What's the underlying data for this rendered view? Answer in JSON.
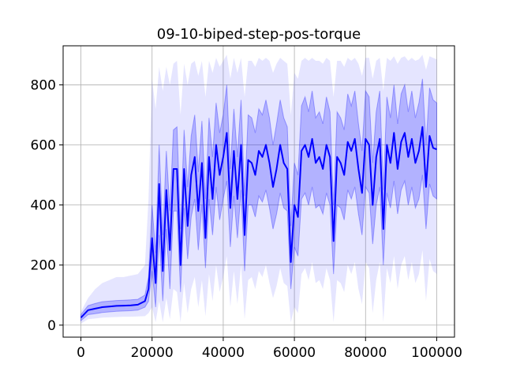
{
  "chart_data": {
    "type": "line",
    "title": "09-10-biped-step-pos-torque",
    "xlabel": "",
    "ylabel": "",
    "xlim": [
      -5000,
      105000
    ],
    "ylim": [
      -40,
      930
    ],
    "xticks": [
      0,
      20000,
      40000,
      60000,
      80000,
      100000
    ],
    "xtick_labels": [
      "0",
      "20000",
      "40000",
      "60000",
      "80000",
      "100000"
    ],
    "yticks": [
      0,
      200,
      400,
      600,
      800
    ],
    "ytick_labels": [
      "0",
      "200",
      "400",
      "600",
      "800"
    ],
    "grid": true,
    "colors": {
      "mean_line": "#0000ff",
      "inner_band": "#0000ff",
      "outer_band": "#0000ff"
    },
    "series": [
      {
        "x": [
          0,
          2000,
          4000,
          6000,
          8000,
          10000,
          12000,
          14000,
          16000,
          18000,
          19000,
          20000,
          21000,
          22000,
          23000,
          24000,
          25000,
          26000,
          27000,
          28000,
          29000,
          30000,
          31000,
          32000,
          33000,
          34000,
          35000,
          36000,
          37000,
          38000,
          39000,
          40000,
          41000,
          42000,
          43000,
          44000,
          45000,
          46000,
          47000,
          48000,
          49000,
          50000,
          51000,
          52000,
          53000,
          54000,
          55000,
          56000,
          57000,
          58000,
          59000,
          60000,
          61000,
          62000,
          63000,
          64000,
          65000,
          66000,
          67000,
          68000,
          69000,
          70000,
          71000,
          72000,
          73000,
          74000,
          75000,
          76000,
          77000,
          78000,
          79000,
          80000,
          81000,
          82000,
          83000,
          84000,
          85000,
          86000,
          87000,
          88000,
          89000,
          90000,
          91000,
          92000,
          93000,
          94000,
          95000,
          96000,
          97000,
          98000,
          99000,
          100000
        ],
        "mean": [
          25,
          50,
          55,
          60,
          62,
          64,
          65,
          66,
          68,
          80,
          120,
          290,
          140,
          470,
          180,
          450,
          250,
          520,
          520,
          200,
          520,
          330,
          500,
          560,
          380,
          540,
          290,
          560,
          420,
          600,
          500,
          560,
          640,
          390,
          580,
          420,
          600,
          300,
          550,
          540,
          500,
          580,
          560,
          600,
          540,
          460,
          520,
          600,
          540,
          520,
          210,
          400,
          360,
          580,
          600,
          560,
          620,
          540,
          560,
          520,
          600,
          560,
          280,
          560,
          540,
          500,
          610,
          580,
          620,
          520,
          440,
          620,
          600,
          400,
          560,
          620,
          320,
          600,
          540,
          640,
          520,
          610,
          640,
          560,
          620,
          540,
          580,
          660,
          460,
          630,
          590,
          585
        ],
        "inner_low": [
          15,
          35,
          38,
          42,
          44,
          46,
          47,
          48,
          50,
          60,
          80,
          180,
          60,
          300,
          80,
          320,
          120,
          380,
          380,
          110,
          390,
          220,
          360,
          420,
          250,
          400,
          190,
          420,
          300,
          460,
          350,
          420,
          480,
          260,
          430,
          290,
          450,
          180,
          400,
          400,
          360,
          430,
          410,
          450,
          390,
          320,
          370,
          440,
          390,
          380,
          120,
          260,
          230,
          420,
          440,
          400,
          460,
          390,
          400,
          370,
          440,
          400,
          170,
          400,
          390,
          350,
          450,
          420,
          460,
          370,
          300,
          460,
          440,
          270,
          400,
          460,
          200,
          440,
          390,
          480,
          370,
          450,
          480,
          400,
          460,
          390,
          420,
          500,
          320,
          470,
          430,
          420
        ],
        "inner_high": [
          35,
          65,
          72,
          78,
          80,
          82,
          83,
          84,
          86,
          100,
          160,
          400,
          240,
          600,
          300,
          580,
          380,
          650,
          660,
          320,
          650,
          460,
          630,
          700,
          510,
          680,
          420,
          690,
          560,
          740,
          640,
          700,
          800,
          520,
          720,
          560,
          750,
          430,
          700,
          690,
          640,
          720,
          700,
          750,
          690,
          600,
          670,
          750,
          690,
          660,
          330,
          540,
          500,
          730,
          760,
          710,
          780,
          690,
          710,
          670,
          760,
          710,
          400,
          710,
          690,
          650,
          770,
          730,
          780,
          670,
          580,
          780,
          760,
          540,
          710,
          780,
          450,
          760,
          690,
          800,
          670,
          770,
          800,
          710,
          780,
          690,
          740,
          820,
          600,
          790,
          750,
          740
        ],
        "outer_low": [
          5,
          20,
          22,
          25,
          26,
          27,
          28,
          28,
          29,
          30,
          40,
          60,
          10,
          80,
          10,
          90,
          20,
          120,
          110,
          10,
          140,
          40,
          120,
          160,
          60,
          150,
          30,
          170,
          80,
          200,
          110,
          160,
          230,
          60,
          180,
          70,
          200,
          20,
          150,
          160,
          120,
          180,
          160,
          200,
          140,
          90,
          130,
          190,
          140,
          130,
          10,
          60,
          40,
          170,
          190,
          150,
          210,
          140,
          150,
          120,
          190,
          150,
          10,
          150,
          140,
          110,
          200,
          170,
          210,
          120,
          70,
          210,
          190,
          40,
          150,
          210,
          10,
          190,
          140,
          230,
          120,
          200,
          230,
          150,
          210,
          140,
          170,
          250,
          80,
          220,
          180,
          170
        ],
        "outer_high": [
          45,
          90,
          120,
          140,
          150,
          160,
          160,
          165,
          170,
          200,
          420,
          820,
          720,
          860,
          780,
          860,
          800,
          870,
          880,
          700,
          870,
          800,
          870,
          880,
          830,
          880,
          760,
          880,
          840,
          890,
          860,
          880,
          900,
          820,
          890,
          840,
          890,
          760,
          880,
          880,
          860,
          890,
          880,
          890,
          880,
          840,
          870,
          890,
          880,
          870,
          700,
          840,
          820,
          880,
          890,
          880,
          890,
          880,
          880,
          870,
          890,
          880,
          760,
          880,
          880,
          860,
          890,
          880,
          890,
          870,
          830,
          890,
          890,
          820,
          880,
          890,
          780,
          890,
          880,
          895,
          870,
          890,
          895,
          880,
          890,
          880,
          885,
          900,
          850,
          895,
          890,
          885
        ]
      }
    ]
  }
}
